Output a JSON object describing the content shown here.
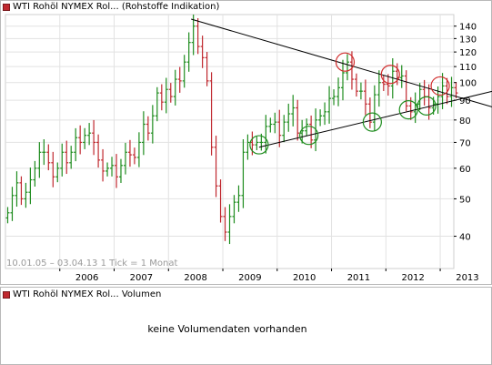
{
  "price_panel": {
    "title": "WTI Rohöl NYMEX Rol... (Rohstoffe Indikation)",
    "info_line": "10.01.05 – 03.04.13   1 Tick = 1 Monat"
  },
  "volume_panel": {
    "title": "WTI Rohöl NYMEX Rol... Volumen",
    "message": "keine Volumendaten vorhanden"
  },
  "colors": {
    "up": "#1e8c1e",
    "down": "#c0282f",
    "trendline": "#000000",
    "grid": "#e2e2e2",
    "circle_red": "#d12b2b",
    "circle_green": "#1e8c1e"
  },
  "chart_data": {
    "type": "ohlc",
    "scale": "log",
    "ylim": [
      33,
      150
    ],
    "ytick_labels": [
      "40",
      "50",
      "60",
      "70",
      "80",
      "90",
      "100",
      "110",
      "120",
      "130",
      "140"
    ],
    "xtick_labels": [
      "2006",
      "2007",
      "2008",
      "2009",
      "2010",
      "2011",
      "2012",
      "2013"
    ],
    "x_range": [
      "2005-01",
      "2013-04"
    ],
    "grid": true,
    "monthly_closes": [
      46,
      51,
      55,
      50,
      52,
      56,
      60,
      66,
      66,
      62,
      57,
      60,
      66,
      62,
      66,
      72,
      70,
      73,
      74,
      70,
      63,
      59,
      60,
      61,
      57,
      61,
      66,
      65,
      64,
      70,
      78,
      74,
      82,
      94,
      89,
      96,
      92,
      102,
      101,
      113,
      127,
      140,
      124,
      116,
      101,
      68,
      54,
      45,
      41,
      45,
      49,
      51,
      66,
      70,
      69,
      70,
      70,
      77,
      78,
      79,
      73,
      79,
      83,
      86,
      74,
      75,
      78,
      71,
      80,
      82,
      84,
      91,
      92,
      97,
      106,
      113,
      102,
      95,
      95,
      88,
      79,
      93,
      100,
      99,
      98,
      107,
      103,
      104,
      87,
      84,
      88,
      96,
      92,
      86,
      88,
      92,
      98,
      92,
      97,
      94
    ],
    "trendlines": [
      {
        "name": "upper",
        "from": [
          "2008-06",
          146
        ],
        "to": [
          "2013-06",
          91
        ]
      },
      {
        "name": "lower",
        "from": [
          "2009-09",
          68
        ],
        "to": [
          "2013-06",
          91
        ]
      }
    ],
    "circles": [
      {
        "color": "red",
        "x": "2011-04",
        "y": 113
      },
      {
        "color": "red",
        "x": "2012-02",
        "y": 105
      },
      {
        "color": "red",
        "x": "2013-01",
        "y": 98
      },
      {
        "color": "green",
        "x": "2009-09",
        "y": 69
      },
      {
        "color": "green",
        "x": "2010-08",
        "y": 73
      },
      {
        "color": "green",
        "x": "2011-10",
        "y": 79
      },
      {
        "color": "green",
        "x": "2012-06",
        "y": 85
      },
      {
        "color": "green",
        "x": "2012-10",
        "y": 87
      }
    ]
  }
}
